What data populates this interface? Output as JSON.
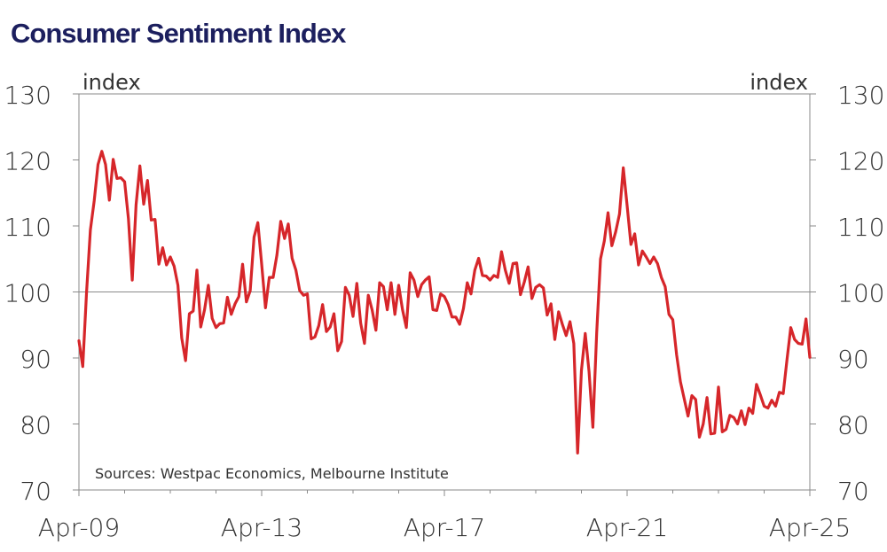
{
  "chart_data": {
    "type": "line",
    "title": "Consumer Sentiment Index",
    "ylabel_left": "index",
    "ylabel_right": "index",
    "source_note": "Sources: Westpac Economics, Melbourne Institute",
    "ylim": [
      70,
      130
    ],
    "yticks": [
      70,
      80,
      90,
      100,
      110,
      120,
      130
    ],
    "xlim": [
      "2009-04",
      "2025-04"
    ],
    "xticks": [
      {
        "date": "2009-04",
        "label": "Apr-09"
      },
      {
        "date": "2013-04",
        "label": "Apr-13"
      },
      {
        "date": "2017-04",
        "label": "Apr-17"
      },
      {
        "date": "2021-04",
        "label": "Apr-21"
      },
      {
        "date": "2025-04",
        "label": "Apr-25"
      }
    ],
    "reference_line": 100,
    "grid": false,
    "line_color": "#d6262a",
    "series": [
      {
        "name": "",
        "x": [
          "2009-04",
          "2009-05",
          "2009-06",
          "2009-07",
          "2009-08",
          "2009-09",
          "2009-10",
          "2009-11",
          "2009-12",
          "2010-01",
          "2010-02",
          "2010-03",
          "2010-04",
          "2010-05",
          "2010-06",
          "2010-07",
          "2010-08",
          "2010-09",
          "2010-10",
          "2010-11",
          "2010-12",
          "2011-01",
          "2011-02",
          "2011-03",
          "2011-04",
          "2011-05",
          "2011-06",
          "2011-07",
          "2011-08",
          "2011-09",
          "2011-10",
          "2011-11",
          "2011-12",
          "2012-01",
          "2012-02",
          "2012-03",
          "2012-04",
          "2012-05",
          "2012-06",
          "2012-07",
          "2012-08",
          "2012-09",
          "2012-10",
          "2012-11",
          "2012-12",
          "2013-01",
          "2013-02",
          "2013-03",
          "2013-04",
          "2013-05",
          "2013-06",
          "2013-07",
          "2013-08",
          "2013-09",
          "2013-10",
          "2013-11",
          "2013-12",
          "2014-01",
          "2014-02",
          "2014-03",
          "2014-04",
          "2014-05",
          "2014-06",
          "2014-07",
          "2014-08",
          "2014-09",
          "2014-10",
          "2014-11",
          "2014-12",
          "2015-01",
          "2015-02",
          "2015-03",
          "2015-04",
          "2015-05",
          "2015-06",
          "2015-07",
          "2015-08",
          "2015-09",
          "2015-10",
          "2015-11",
          "2015-12",
          "2016-01",
          "2016-02",
          "2016-03",
          "2016-04",
          "2016-05",
          "2016-06",
          "2016-07",
          "2016-08",
          "2016-09",
          "2016-10",
          "2016-11",
          "2016-12",
          "2017-01",
          "2017-02",
          "2017-03",
          "2017-04",
          "2017-05",
          "2017-06",
          "2017-07",
          "2017-08",
          "2017-09",
          "2017-10",
          "2017-11",
          "2017-12",
          "2018-01",
          "2018-02",
          "2018-03",
          "2018-04",
          "2018-05",
          "2018-06",
          "2018-07",
          "2018-08",
          "2018-09",
          "2018-10",
          "2018-11",
          "2018-12",
          "2019-01",
          "2019-02",
          "2019-03",
          "2019-04",
          "2019-05",
          "2019-06",
          "2019-07",
          "2019-08",
          "2019-09",
          "2019-10",
          "2019-11",
          "2019-12",
          "2020-01",
          "2020-02",
          "2020-03",
          "2020-04",
          "2020-05",
          "2020-06",
          "2020-07",
          "2020-08",
          "2020-09",
          "2020-10",
          "2020-11",
          "2020-12",
          "2021-01",
          "2021-02",
          "2021-03",
          "2021-04",
          "2021-05",
          "2021-06",
          "2021-07",
          "2021-08",
          "2021-09",
          "2021-10",
          "2021-11",
          "2021-12",
          "2022-01",
          "2022-02",
          "2022-03",
          "2022-04",
          "2022-05",
          "2022-06",
          "2022-07",
          "2022-08",
          "2022-09",
          "2022-10",
          "2022-11",
          "2022-12",
          "2023-01",
          "2023-02",
          "2023-03",
          "2023-04",
          "2023-05",
          "2023-06",
          "2023-07",
          "2023-08",
          "2023-09",
          "2023-10",
          "2023-11",
          "2023-12",
          "2024-01",
          "2024-02",
          "2024-03",
          "2024-04",
          "2024-05",
          "2024-06",
          "2024-07",
          "2024-08",
          "2024-09",
          "2024-10",
          "2024-11",
          "2024-12",
          "2025-01",
          "2025-02",
          "2025-03",
          "2025-04"
        ],
        "y": [
          92.6,
          88.7,
          100.0,
          109.4,
          113.8,
          119.3,
          121.3,
          119.3,
          113.9,
          120.1,
          117.2,
          117.3,
          116.7,
          111.1,
          101.8,
          113.2,
          119.1,
          113.3,
          116.9,
          110.9,
          111.0,
          104.2,
          106.7,
          104.1,
          105.3,
          103.9,
          101.0,
          93.0,
          89.6,
          96.7,
          97.1,
          103.3,
          94.7,
          97.3,
          101.0,
          96.0,
          94.6,
          95.2,
          95.3,
          99.2,
          96.6,
          98.2,
          99.3,
          104.2,
          98.5,
          100.2,
          108.3,
          110.5,
          104.2,
          97.6,
          102.2,
          102.2,
          105.6,
          110.7,
          108.1,
          110.3,
          105.1,
          103.3,
          100.2,
          99.5,
          99.7,
          92.9,
          93.2,
          94.9,
          98.1,
          94.0,
          94.7,
          96.7,
          91.1,
          92.5,
          100.7,
          99.5,
          96.3,
          101.3,
          95.3,
          92.2,
          99.5,
          97.3,
          94.2,
          101.4,
          100.8,
          97.3,
          101.4,
          96.6,
          101.0,
          97.3,
          94.6,
          102.9,
          101.8,
          99.3,
          101.1,
          101.8,
          102.3,
          97.3,
          97.2,
          99.7,
          99.3,
          98.1,
          96.2,
          96.2,
          95.1,
          97.5,
          101.4,
          99.7,
          103.3,
          105.1,
          102.5,
          102.4,
          101.8,
          102.5,
          102.2,
          106.1,
          103.3,
          101.3,
          104.3,
          104.4,
          99.6,
          101.5,
          103.8,
          99.0,
          100.7,
          101.1,
          100.6,
          96.5,
          98.2,
          92.8,
          97.0,
          95.1,
          93.4,
          95.5,
          92.2,
          75.6,
          88.1,
          93.7,
          87.9,
          79.5,
          93.8,
          105.0,
          107.7,
          112.0,
          107.0,
          109.1,
          111.8,
          118.8,
          113.1,
          107.2,
          108.8,
          104.1,
          106.2,
          105.3,
          104.3,
          105.3,
          104.3,
          102.2,
          100.8,
          96.6,
          95.8,
          90.5,
          86.4,
          83.8,
          81.2,
          84.3,
          83.7,
          78.0,
          80.0,
          84.0,
          78.5,
          78.6,
          85.6,
          78.8,
          79.2,
          81.3,
          81.0,
          80.0,
          82.0,
          79.9,
          82.4,
          81.6,
          86.0,
          84.4,
          82.7,
          82.4,
          83.6,
          82.7,
          84.8,
          84.6,
          89.8,
          94.6,
          92.8,
          92.2,
          92.1,
          95.9,
          90.1
        ]
      }
    ]
  }
}
